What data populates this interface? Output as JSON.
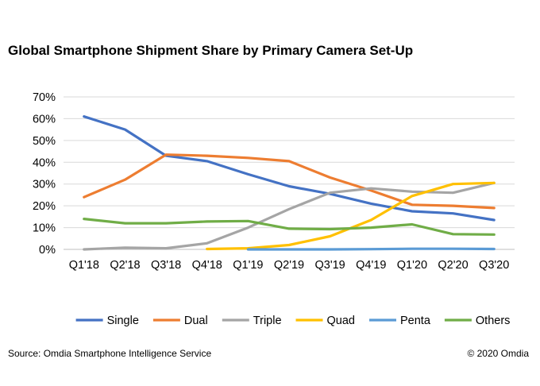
{
  "title": "Global Smartphone Shipment Share by Primary Camera Set-Up",
  "source": "Source: Omdia Smartphone Intelligence Service",
  "copyright": "© 2020 Omdia",
  "chart_data": {
    "type": "line",
    "title": "Global Smartphone Shipment Share by Primary Camera Set-Up",
    "xlabel": "",
    "ylabel": "",
    "ylim": [
      0,
      70
    ],
    "yticks": [
      "0%",
      "10%",
      "20%",
      "30%",
      "40%",
      "50%",
      "60%",
      "70%"
    ],
    "categories": [
      "Q1'18",
      "Q2'18",
      "Q3'18",
      "Q4'18",
      "Q1'19",
      "Q2'19",
      "Q3'19",
      "Q4'19",
      "Q1'20",
      "Q2'20",
      "Q3'20"
    ],
    "grid": "horizontal",
    "legend_position": "bottom",
    "series": [
      {
        "name": "Single",
        "color": "#4472C4",
        "values": [
          61,
          55,
          43,
          40.5,
          34.5,
          29,
          25.5,
          21,
          17.5,
          16.5,
          13.5
        ]
      },
      {
        "name": "Dual",
        "color": "#ED7D31",
        "values": [
          24,
          32,
          43.5,
          43,
          42,
          40.5,
          33,
          27,
          20.5,
          20,
          19
        ]
      },
      {
        "name": "Triple",
        "color": "#A5A5A5",
        "values": [
          0,
          0.8,
          0.5,
          2.8,
          10,
          18.5,
          26,
          28,
          26.5,
          26,
          30.5
        ]
      },
      {
        "name": "Quad",
        "color": "#FFC000",
        "values": [
          null,
          null,
          null,
          0.2,
          0.5,
          2,
          6,
          13.5,
          24.5,
          30,
          30.5
        ]
      },
      {
        "name": "Penta",
        "color": "#5B9BD5",
        "values": [
          null,
          null,
          null,
          null,
          0,
          0,
          0,
          0.1,
          0.3,
          0.3,
          0.2
        ]
      },
      {
        "name": "Others",
        "color": "#70AD47",
        "values": [
          14,
          12,
          12,
          12.8,
          13,
          9.5,
          9.3,
          10,
          11.5,
          7,
          6.8
        ]
      }
    ]
  }
}
